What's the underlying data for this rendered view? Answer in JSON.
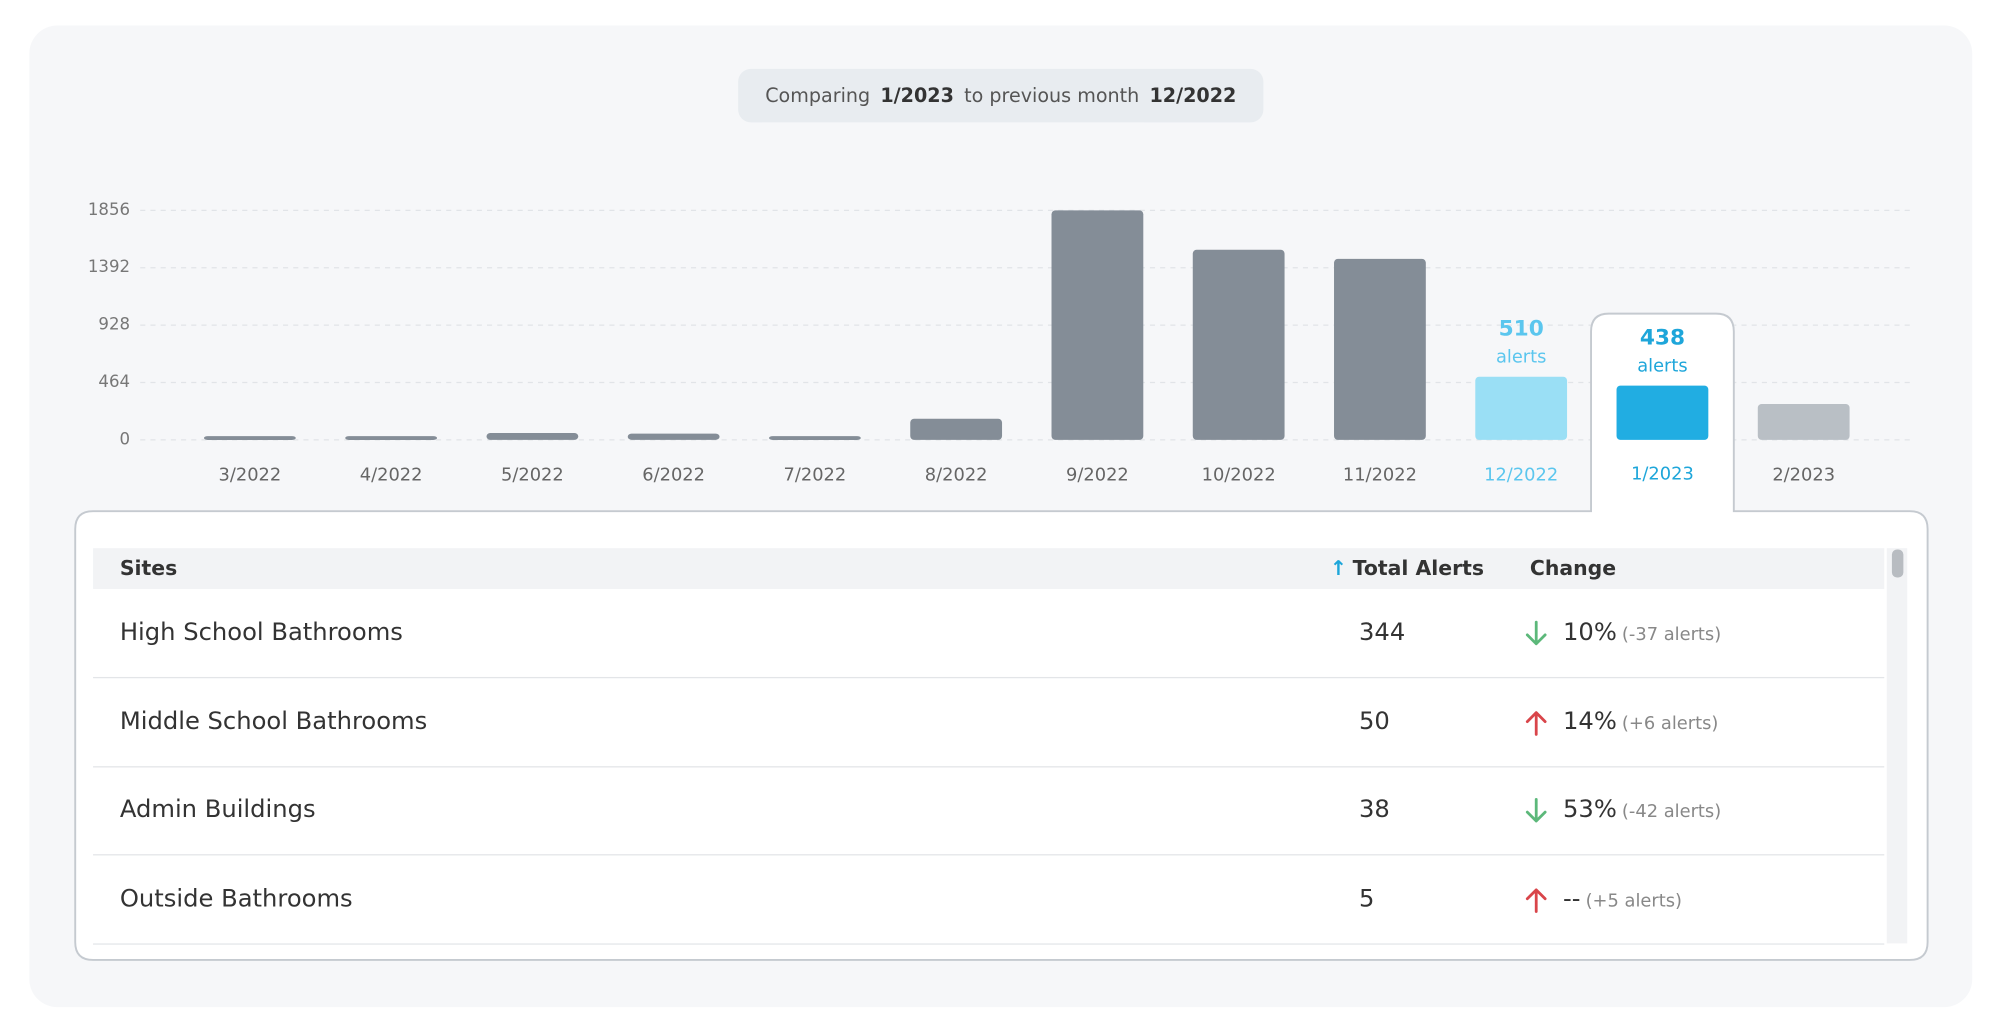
{
  "header": {
    "prefix": "Comparing",
    "current": "1/2023",
    "middle": "to previous month",
    "previous": "12/2022"
  },
  "chart_data": {
    "type": "bar",
    "categories": [
      "3/2022",
      "4/2022",
      "5/2022",
      "6/2022",
      "7/2022",
      "8/2022",
      "9/2022",
      "10/2022",
      "11/2022",
      "12/2022",
      "1/2023",
      "2/2023"
    ],
    "values": [
      30,
      30,
      55,
      50,
      30,
      170,
      1856,
      1537,
      1464,
      510,
      438,
      290
    ],
    "color": "#848d97",
    "ylim": [
      0,
      1856
    ],
    "yticks": [
      0,
      464,
      928,
      1392,
      1856
    ],
    "grid": true,
    "data_label_unit": "alerts",
    "highlights": [
      {
        "index": 9,
        "bar_color": "#9adff5",
        "text_color": "#5bc6ee"
      },
      {
        "index": 10,
        "bar_color": "#21ade2",
        "text_color": "#1ea6da",
        "selected": true
      },
      {
        "index": 11,
        "bar_color": "#b9bfc5"
      }
    ]
  },
  "table": {
    "columns": [
      "Sites",
      "Total Alerts",
      "Change"
    ],
    "rows": [
      {
        "site": "High School Bathrooms",
        "total": 344,
        "direction": "down",
        "change": "10%",
        "delta": "(-37 alerts)"
      },
      {
        "site": "Middle School Bathrooms",
        "total": 50,
        "direction": "up",
        "change": "14%",
        "delta": "(+6 alerts)"
      },
      {
        "site": "Admin Buildings",
        "total": 38,
        "direction": "down",
        "change": "53%",
        "delta": "(-42 alerts)"
      },
      {
        "site": "Outside Bathrooms",
        "total": 5,
        "direction": "up",
        "change": "--",
        "delta": "(+5 alerts)"
      }
    ]
  }
}
